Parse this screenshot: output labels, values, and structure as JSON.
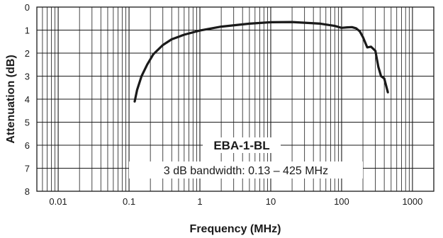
{
  "chart_data": {
    "type": "line",
    "title": "",
    "xlabel": "Frequency (MHz)",
    "ylabel": "Attenuation (dB)",
    "x_scale": "log",
    "xlim": [
      0.005,
      2000
    ],
    "ylim": [
      0,
      8
    ],
    "y_inverted": true,
    "grid": true,
    "x_tick_labels": [
      "0.01",
      "0.1",
      "1",
      "10",
      "100",
      "1000"
    ],
    "y_tick_labels": [
      "0",
      "1",
      "2",
      "3",
      "4",
      "5",
      "6",
      "7",
      "8"
    ],
    "annotations": {
      "model": "EBA-1-BL",
      "bandwidth": "3 dB bandwidth: 0.13 – 425 MHz"
    },
    "series": [
      {
        "x": [
          0.12,
          0.13,
          0.15,
          0.18,
          0.22,
          0.3,
          0.4,
          0.6,
          1,
          2,
          5,
          10,
          20,
          50,
          80,
          100,
          120,
          140,
          160,
          180,
          200,
          230,
          260,
          300,
          330,
          360,
          400,
          450
        ],
        "values": [
          4.1,
          3.6,
          3.0,
          2.5,
          2.05,
          1.65,
          1.4,
          1.2,
          1.02,
          0.85,
          0.72,
          0.66,
          0.65,
          0.72,
          0.82,
          0.9,
          0.88,
          0.87,
          0.92,
          1.05,
          1.3,
          1.75,
          1.72,
          1.9,
          2.6,
          3.0,
          3.1,
          3.7
        ]
      }
    ],
    "colors": {
      "line": "#1a1a1a",
      "grid": "#1a1a1a",
      "background": "#ffffff"
    }
  }
}
